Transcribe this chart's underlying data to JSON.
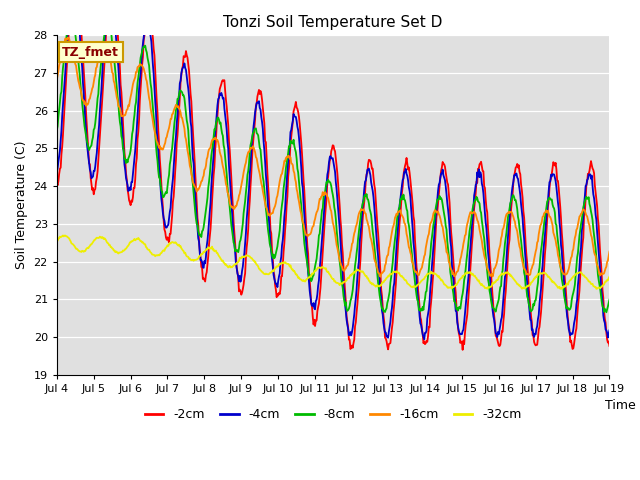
{
  "title": "Tonzi Soil Temperature Set D",
  "xlabel": "Time",
  "ylabel": "Soil Temperature (C)",
  "ylim": [
    19.0,
    28.0
  ],
  "yticks": [
    19.0,
    20.0,
    21.0,
    22.0,
    23.0,
    24.0,
    25.0,
    26.0,
    27.0,
    28.0
  ],
  "xtick_labels": [
    "Jul 4",
    "Jul 5",
    "Jul 6",
    "Jul 7",
    "Jul 8",
    "Jul 9",
    "Jul 10",
    "Jul 11",
    "Jul 12",
    "Jul 13",
    "Jul 14",
    "Jul 15",
    "Jul 16",
    "Jul 17",
    "Jul 18",
    "Jul 19"
  ],
  "legend_label": "TZ_fmet",
  "legend_box_color": "#ffffcc",
  "legend_box_edge": "#cc9900",
  "line_colors": [
    "#ff0000",
    "#0000cc",
    "#00bb00",
    "#ff8800",
    "#eeee00"
  ],
  "line_labels": [
    "-2cm",
    "-4cm",
    "-8cm",
    "-16cm",
    "-32cm"
  ],
  "background_color": "#e0e0e0",
  "grid_color": "#ffffff",
  "n_points": 720
}
